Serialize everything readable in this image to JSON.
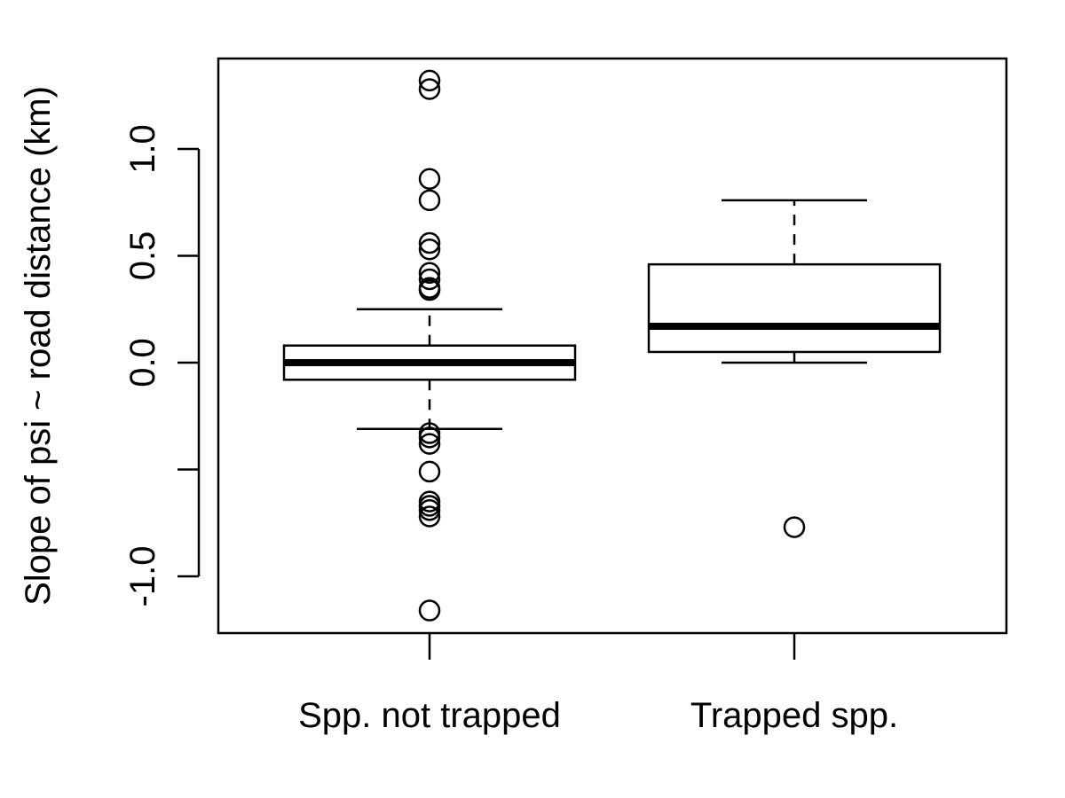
{
  "chart_data": {
    "type": "boxplot",
    "ylabel": "Slope of psi ~ road distance (km)",
    "ylim": [
      -1.25,
      1.42
    ],
    "y_ticks": [
      -1.0,
      -0.5,
      0.0,
      0.5,
      1.0
    ],
    "y_tick_labels": [
      "-1.0",
      "",
      "0.0",
      "0.5",
      "1.0"
    ],
    "categories": [
      "Spp. not trapped",
      "Trapped spp."
    ],
    "boxes": [
      {
        "name": "Spp. not trapped",
        "whisker_low": -0.31,
        "q1": -0.08,
        "median": 0.0,
        "q3": 0.08,
        "whisker_high": 0.25,
        "outliers": [
          1.32,
          1.28,
          0.86,
          0.76,
          0.56,
          0.53,
          0.42,
          0.39,
          0.35,
          0.34,
          -0.33,
          -0.35,
          -0.38,
          -0.51,
          -0.65,
          -0.67,
          -0.69,
          -0.72,
          -1.16
        ]
      },
      {
        "name": "Trapped spp.",
        "whisker_low": 0.0,
        "q1": 0.05,
        "median": 0.17,
        "q3": 0.46,
        "whisker_high": 0.76,
        "outliers": [
          -0.77
        ]
      }
    ],
    "grid": false,
    "legend": "none"
  }
}
